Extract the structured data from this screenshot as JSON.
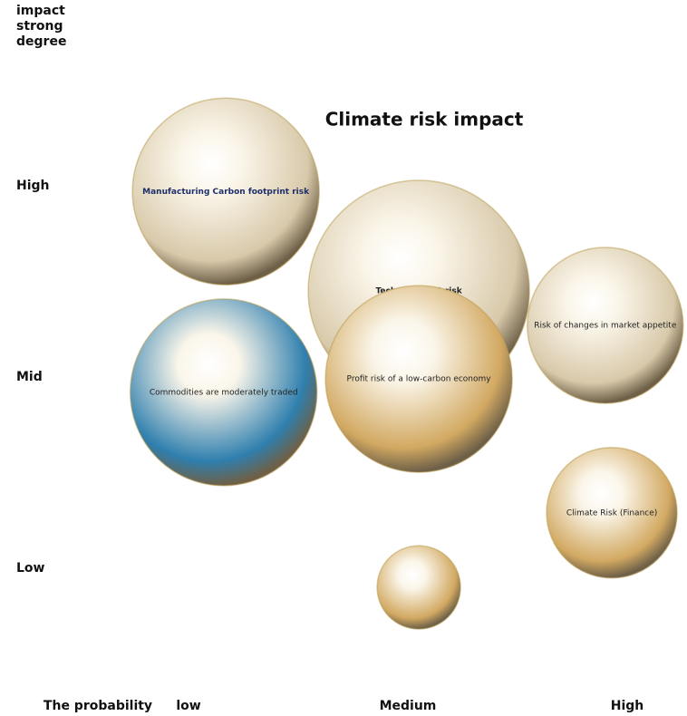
{
  "chart_data": {
    "type": "bubble",
    "title": "Climate risk impact",
    "x_label": "The probability",
    "y_label": "impact strong degree",
    "xlim": [
      0.5,
      3.25
    ],
    "ylim": [
      0.4,
      3.9
    ],
    "xticks": [
      {
        "value": 1,
        "label": "low"
      },
      {
        "value": 2,
        "label": "Medium"
      },
      {
        "value": 3,
        "label": "High"
      }
    ],
    "yticks": [
      {
        "value": 1,
        "label": "Low"
      },
      {
        "value": 2,
        "label": "Mid"
      },
      {
        "value": 3,
        "label": "High"
      }
    ],
    "names": [
      "Manufacturing Carbon footprint risk",
      "Technical debt risk",
      "Risk of changes in market appetite",
      "Commodities are moderately traded",
      "Profit risk of a low-carbon economy",
      "Climate Risk (Finance)",
      null
    ],
    "x": [
      1.17,
      2.05,
      2.9,
      1.16,
      2.05,
      2.93,
      2.05
    ],
    "values": [
      2.97,
      2.45,
      2.27,
      1.92,
      1.99,
      1.29,
      0.9
    ],
    "sizes": [
      103,
      122,
      86,
      103,
      103,
      72,
      46
    ],
    "colors": [
      "#d8c9aa",
      "#d8c9aa",
      "#d8c9aa",
      "#2f7fae",
      "#d2a962",
      "#d2a962",
      "#d2a962"
    ]
  }
}
